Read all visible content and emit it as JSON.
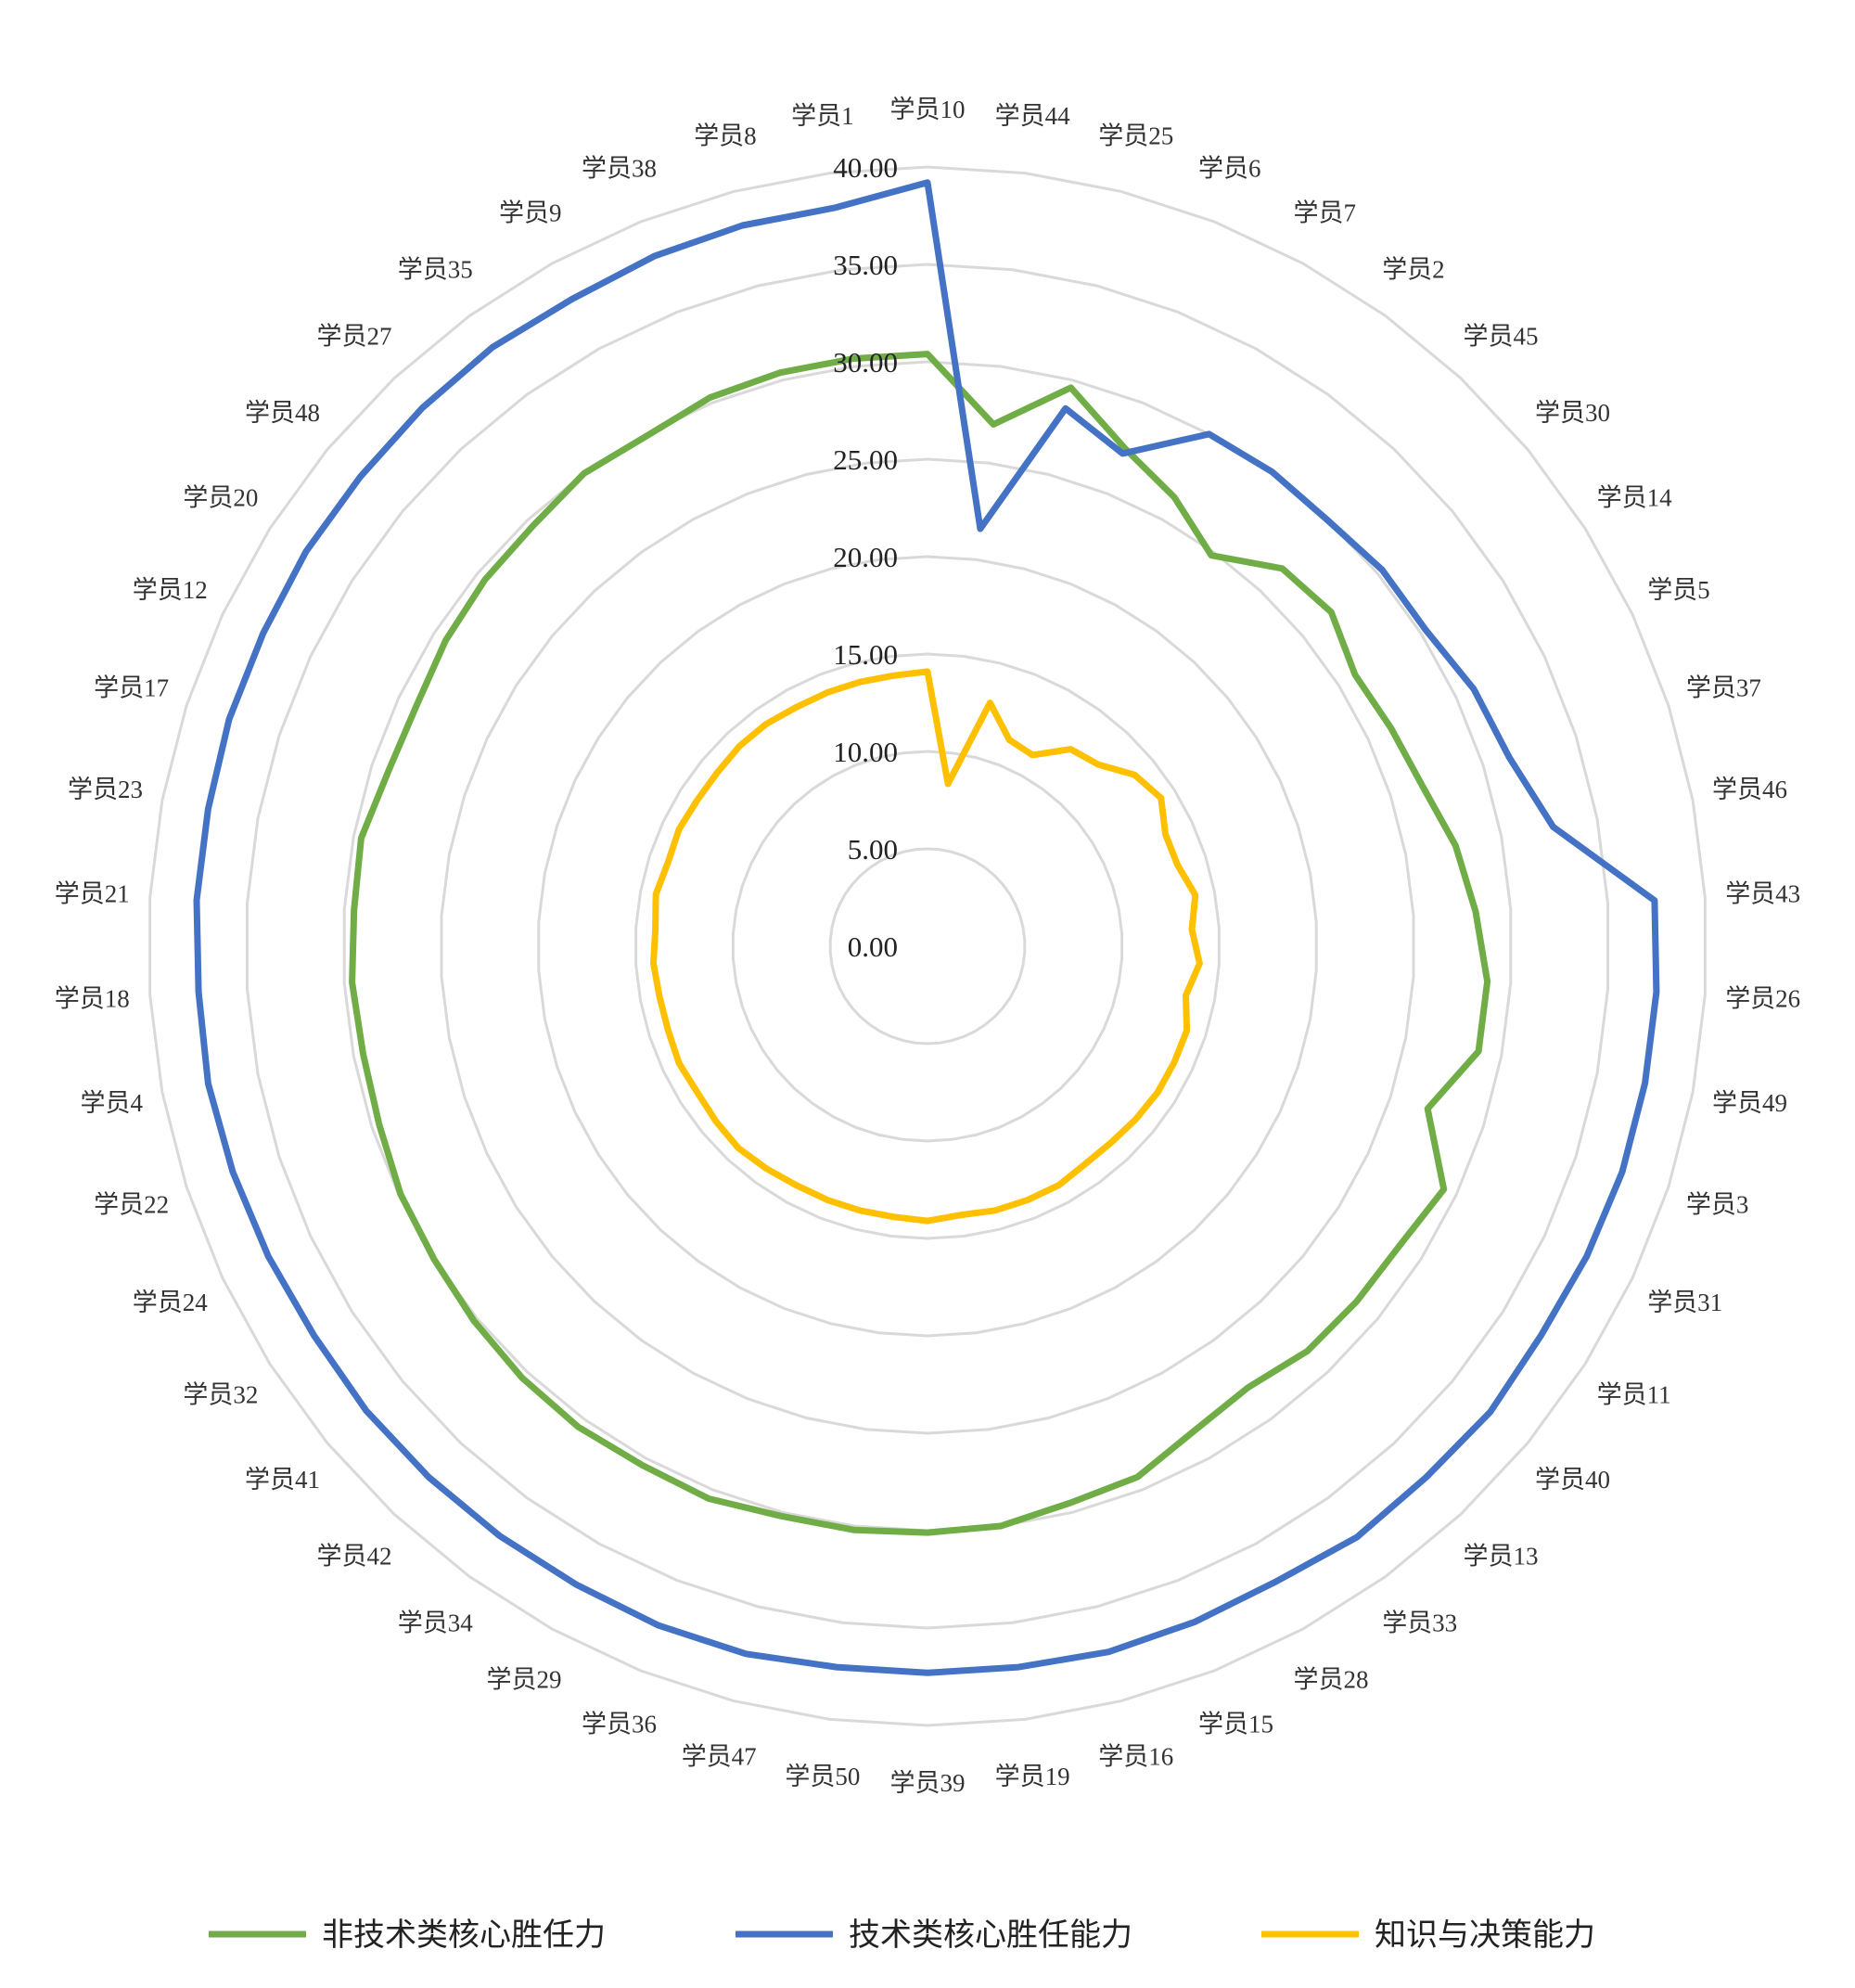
{
  "chart_data": {
    "type": "radar",
    "categories": [
      "学员10",
      "学员44",
      "学员25",
      "学员6",
      "学员7",
      "学员2",
      "学员45",
      "学员30",
      "学员14",
      "学员5",
      "学员37",
      "学员46",
      "学员43",
      "学员26",
      "学员49",
      "学员3",
      "学员31",
      "学员11",
      "学员40",
      "学员13",
      "学员33",
      "学员28",
      "学员15",
      "学员16",
      "学员19",
      "学员39",
      "学员50",
      "学员47",
      "学员36",
      "学员29",
      "学员34",
      "学员42",
      "学员41",
      "学员32",
      "学员24",
      "学员22",
      "学员4",
      "学员18",
      "学员21",
      "学员23",
      "学员17",
      "学员12",
      "学员20",
      "学员48",
      "学员27",
      "学员35",
      "学员9",
      "学员38",
      "学员8",
      "学员1"
    ],
    "rlim": [
      0,
      40
    ],
    "ticks": [
      "0.00",
      "5.00",
      "10.00",
      "15.00",
      "20.00",
      "25.00",
      "30.00",
      "35.00",
      "40.00"
    ],
    "tick_values": [
      0,
      5,
      10,
      15,
      20,
      25,
      30,
      35,
      40
    ],
    "grid": true,
    "legend_position": "bottom",
    "series": [
      {
        "name": "非技术类核心胜任力",
        "color": "#70ad47",
        "values": [
          30.4,
          27.0,
          29.6,
          27.5,
          26.3,
          24.8,
          26.6,
          26.9,
          26.0,
          26.3,
          26.7,
          27.6,
          28.2,
          28.8,
          28.8,
          27.0,
          29.3,
          28.7,
          28.6,
          28.5,
          28.0,
          28.4,
          29.3,
          29.5,
          30.0,
          30.1,
          30.2,
          30.2,
          30.5,
          30.4,
          30.5,
          30.4,
          30.2,
          30.0,
          29.9,
          29.6,
          29.5,
          29.6,
          29.5,
          29.6,
          29.1,
          29.0,
          29.3,
          29.5,
          29.6,
          30.0,
          29.9,
          30.3,
          30.4,
          30.4
        ]
      },
      {
        "name": "技术类核心胜任能力",
        "color": "#4472c4",
        "values": [
          39.2,
          21.6,
          28.5,
          27.2,
          30.0,
          30.1,
          30.0,
          30.3,
          30.3,
          31.0,
          31.4,
          32.7,
          37.4,
          37.5,
          37.5,
          37.5,
          37.4,
          37.3,
          37.5,
          37.4,
          37.5,
          37.2,
          37.3,
          37.4,
          37.3,
          37.3,
          37.3,
          37.5,
          37.5,
          37.4,
          37.4,
          37.4,
          37.4,
          37.3,
          37.4,
          37.5,
          37.6,
          37.5,
          37.6,
          37.6,
          37.7,
          37.7,
          37.8,
          37.8,
          37.9,
          38.0,
          37.9,
          38.1,
          38.2,
          38.2
        ]
      },
      {
        "name": "知识与决策能力",
        "color": "#ffc000",
        "values": [
          14.1,
          8.4,
          12.9,
          11.4,
          11.2,
          12.5,
          12.8,
          13.8,
          14.2,
          13.5,
          13.5,
          14.0,
          13.6,
          14.0,
          13.5,
          14.0,
          14.0,
          14.0,
          13.9,
          13.8,
          13.8,
          14.0,
          14.0,
          14.0,
          13.9,
          14.1,
          14.0,
          14.0,
          14.0,
          14.0,
          14.1,
          14.2,
          14.1,
          14.0,
          14.1,
          14.0,
          14.0,
          14.1,
          14.0,
          14.2,
          14.0,
          14.1,
          14.0,
          14.0,
          14.1,
          14.1,
          14.0,
          14.0,
          14.0,
          14.0
        ]
      }
    ]
  }
}
